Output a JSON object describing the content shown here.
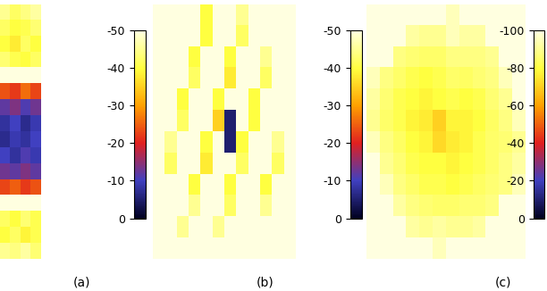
{
  "chart_data": [
    {
      "type": "heatmap",
      "label": "(a)",
      "tick_labels": false,
      "clim": [
        0,
        -50
      ],
      "cticks": [
        0,
        -10,
        -20,
        -30,
        -40,
        -50
      ],
      "cells": [
        [
          -45,
          -42,
          -44,
          -46
        ],
        [
          -42,
          -40,
          -41,
          -43
        ],
        [
          -40,
          -38,
          -42,
          -40
        ],
        [
          -43,
          -41,
          -40,
          -42
        ],
        [
          -50,
          -50,
          -50,
          -50
        ],
        [
          -24,
          -22,
          -26,
          -23
        ],
        [
          -12,
          -14,
          -11,
          -13
        ],
        [
          -8,
          -10,
          -7,
          -9
        ],
        [
          -7,
          -9,
          -8,
          -10
        ],
        [
          -10,
          -8,
          -11,
          -9
        ],
        [
          -13,
          -12,
          -14,
          -12
        ],
        [
          -23,
          -25,
          -22,
          -24
        ],
        [
          -50,
          -50,
          -50,
          -50
        ],
        [
          -42,
          -40,
          -43,
          -41
        ],
        [
          -40,
          -42,
          -39,
          -41
        ],
        [
          -45,
          -44,
          -46,
          -43
        ]
      ]
    },
    {
      "type": "heatmap",
      "label": "(b)",
      "tick_labels": false,
      "clim": [
        0,
        -50
      ],
      "cticks": [
        0,
        -10,
        -20,
        -30,
        -40,
        -50
      ],
      "cells": [
        [
          -50,
          -50,
          -50,
          -50,
          -40,
          -50,
          -50,
          -45,
          -50,
          -50,
          -50,
          -50
        ],
        [
          -50,
          -50,
          -50,
          -50,
          -40,
          -50,
          -50,
          -42,
          -50,
          -50,
          -50,
          -50
        ],
        [
          -50,
          -50,
          -50,
          -40,
          -50,
          -50,
          -40,
          -50,
          -50,
          -45,
          -50,
          -50
        ],
        [
          -50,
          -50,
          -50,
          -42,
          -50,
          -50,
          -38,
          -50,
          -50,
          -42,
          -50,
          -50
        ],
        [
          -50,
          -50,
          -40,
          -50,
          -50,
          -40,
          -50,
          -50,
          -40,
          -50,
          -50,
          -50
        ],
        [
          -50,
          -50,
          -42,
          -50,
          -50,
          -35,
          -5,
          -50,
          -40,
          -50,
          -50,
          -50
        ],
        [
          -50,
          -45,
          -50,
          -50,
          -40,
          -50,
          -5,
          -40,
          -50,
          -50,
          -45,
          -50
        ],
        [
          -50,
          -42,
          -50,
          -50,
          -38,
          -50,
          -50,
          -42,
          -50,
          -50,
          -42,
          -50
        ],
        [
          -50,
          -50,
          -50,
          -40,
          -50,
          -50,
          -40,
          -50,
          -50,
          -40,
          -50,
          -50
        ],
        [
          -50,
          -50,
          -50,
          -45,
          -50,
          -50,
          -42,
          -50,
          -50,
          -45,
          -50,
          -50
        ],
        [
          -50,
          -50,
          -45,
          -50,
          -50,
          -45,
          -50,
          -50,
          -50,
          -50,
          -50,
          -50
        ],
        [
          -50,
          -50,
          -50,
          -50,
          -50,
          -50,
          -50,
          -50,
          -50,
          -50,
          -50,
          -50
        ]
      ]
    },
    {
      "type": "heatmap",
      "label": "(c)",
      "tick_labels": false,
      "clim": [
        0,
        -100
      ],
      "cticks": [
        0,
        -20,
        -40,
        -60,
        -80,
        -100
      ],
      "cells": [
        [
          -100,
          -100,
          -100,
          -100,
          -100,
          -100,
          -95,
          -100,
          -100,
          -100,
          -100,
          -100
        ],
        [
          -100,
          -100,
          -100,
          -92,
          -90,
          -90,
          -95,
          -92,
          -92,
          -100,
          -100,
          -100
        ],
        [
          -100,
          -100,
          -88,
          -86,
          -85,
          -85,
          -88,
          -88,
          -88,
          -90,
          -100,
          -100
        ],
        [
          -95,
          -88,
          -85,
          -82,
          -80,
          -82,
          -85,
          -84,
          -86,
          -88,
          -95,
          -100
        ],
        [
          -92,
          -86,
          -82,
          -80,
          -78,
          -80,
          -82,
          -80,
          -82,
          -86,
          -90,
          -100
        ],
        [
          -90,
          -85,
          -82,
          -78,
          -76,
          -70,
          -78,
          -78,
          -80,
          -84,
          -88,
          -95
        ],
        [
          -95,
          -88,
          -84,
          -80,
          -78,
          -72,
          -76,
          -78,
          -82,
          -85,
          -86,
          -90
        ],
        [
          -100,
          -90,
          -86,
          -82,
          -80,
          -80,
          -78,
          -80,
          -82,
          -85,
          -88,
          -92
        ],
        [
          -100,
          -95,
          -88,
          -85,
          -82,
          -82,
          -80,
          -82,
          -84,
          -86,
          -88,
          -95
        ],
        [
          -100,
          -100,
          -92,
          -88,
          -86,
          -85,
          -85,
          -86,
          -86,
          -88,
          -100,
          -100
        ],
        [
          -100,
          -100,
          -100,
          -92,
          -90,
          -92,
          -90,
          -90,
          -92,
          -100,
          -100,
          -100
        ],
        [
          -100,
          -100,
          -100,
          -100,
          -100,
          -95,
          -100,
          -100,
          -100,
          -100,
          -100,
          -100
        ]
      ]
    }
  ]
}
